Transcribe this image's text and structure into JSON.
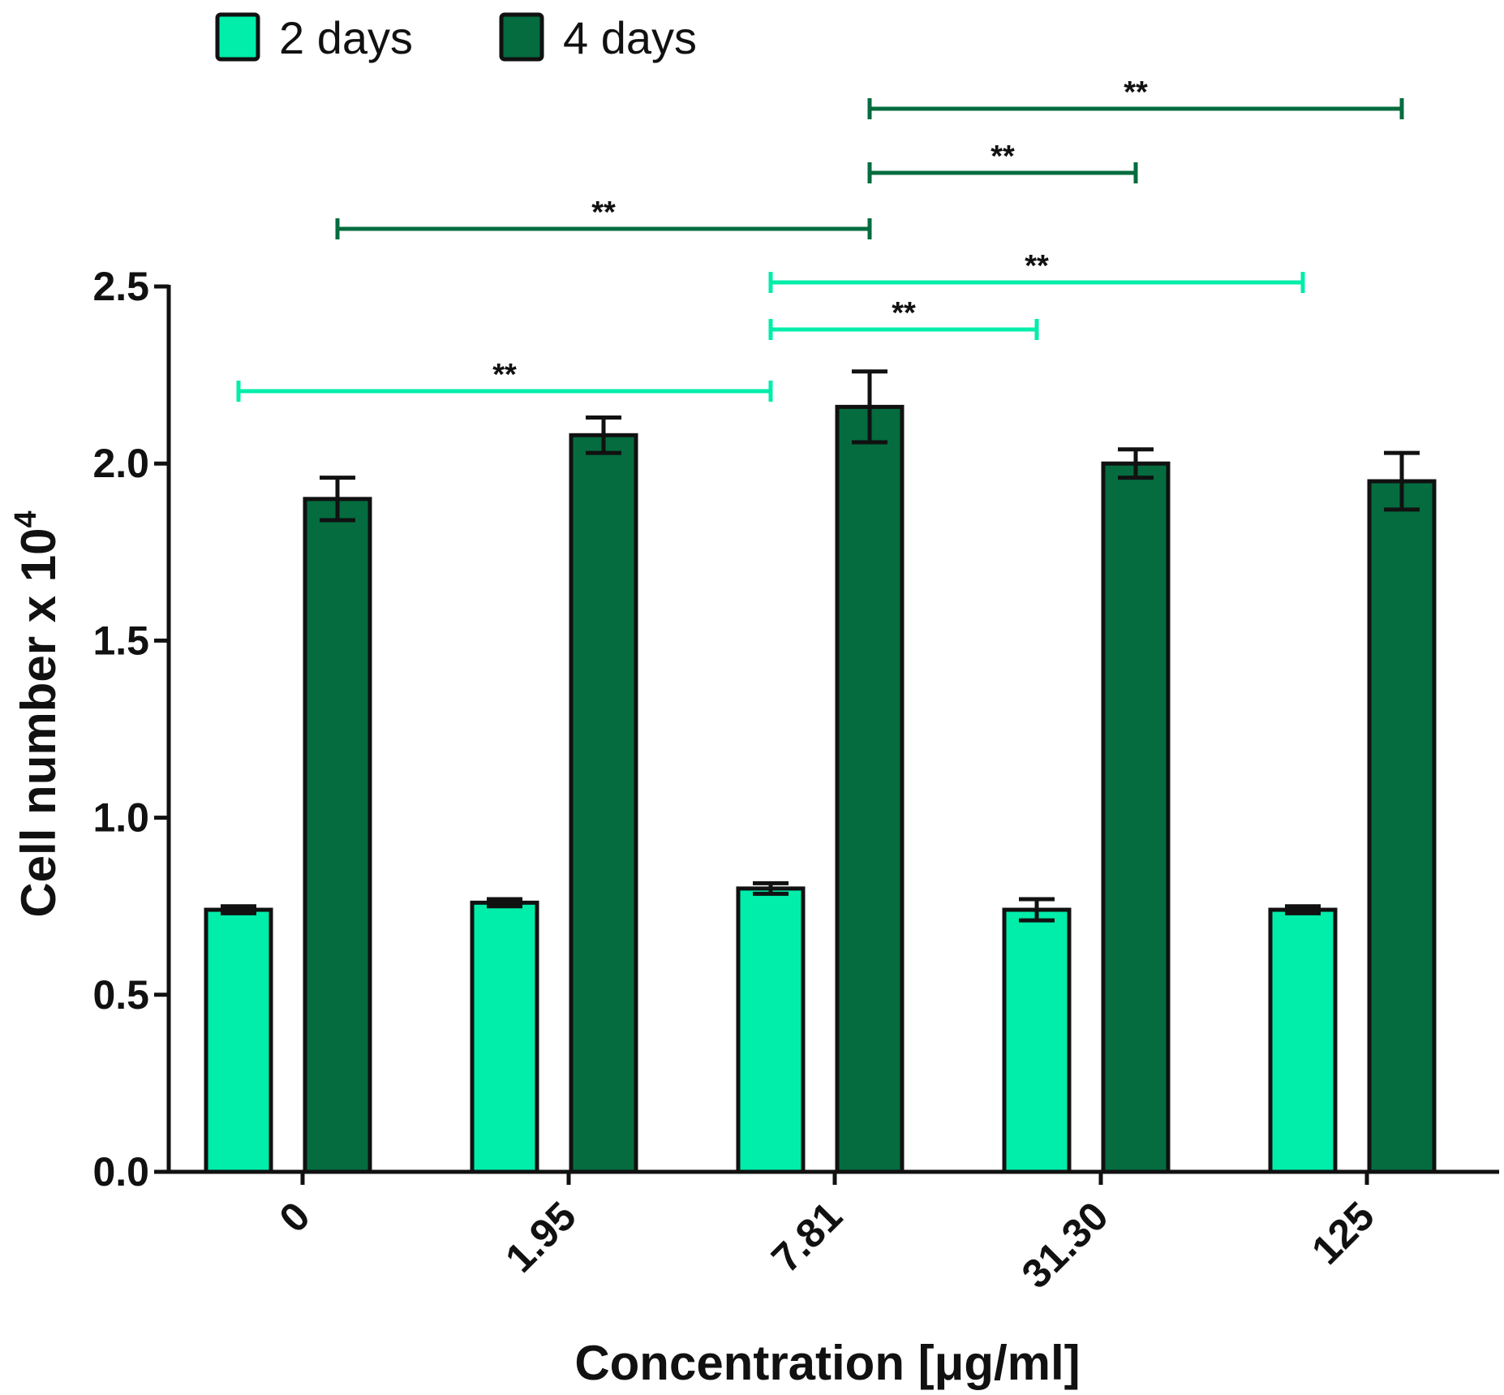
{
  "colors": {
    "series_2_days": "#00EDAA",
    "series_4_days": "#046C3F",
    "axis": "#111111",
    "bar_outline": "#111111"
  },
  "chart_data": {
    "type": "bar",
    "categories": [
      "0",
      "1.95",
      "7.81",
      "31.30",
      "125"
    ],
    "series": [
      {
        "name": "2 days",
        "values": [
          0.74,
          0.76,
          0.8,
          0.74,
          0.74
        ],
        "errors": [
          0.01,
          0.01,
          0.015,
          0.03,
          0.01
        ]
      },
      {
        "name": "4 days",
        "values": [
          1.9,
          2.08,
          2.16,
          2.0,
          1.95
        ],
        "errors": [
          0.06,
          0.05,
          0.1,
          0.04,
          0.08
        ]
      }
    ],
    "xlabel": "Concentration [μg/ml]",
    "ylabel_main": "Cell number x 10",
    "ylabel_superscript": "4",
    "ylim": [
      0,
      2.5
    ],
    "yticks": [
      "0.0",
      "0.5",
      "1.0",
      "1.5",
      "2.0",
      "2.5"
    ],
    "grid": false,
    "legend_position": "top-left",
    "significance": [
      {
        "series": "2 days",
        "from": "0",
        "to": "7.81",
        "label": "**"
      },
      {
        "series": "2 days",
        "from": "7.81",
        "to": "31.30",
        "label": "**"
      },
      {
        "series": "2 days",
        "from": "7.81",
        "to": "125",
        "label": "**"
      },
      {
        "series": "4 days",
        "from": "0",
        "to": "7.81",
        "label": "**"
      },
      {
        "series": "4 days",
        "from": "7.81",
        "to": "31.30",
        "label": "**"
      },
      {
        "series": "4 days",
        "from": "7.81",
        "to": "125",
        "label": "**"
      }
    ]
  }
}
